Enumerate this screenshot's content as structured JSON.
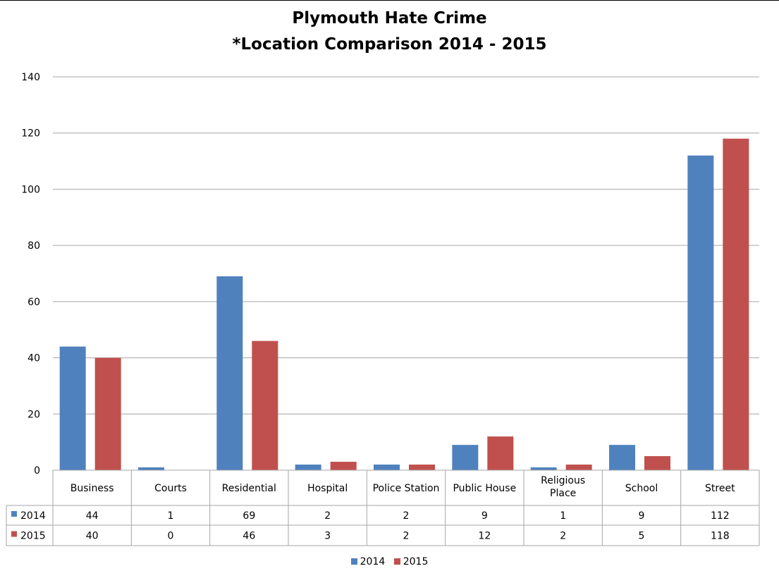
{
  "chart_data": {
    "type": "bar",
    "title": [
      "Plymouth Hate Crime",
      "*Location Comparison 2014 - 2015"
    ],
    "xlabel": "",
    "ylabel": "",
    "ylim": [
      0,
      140
    ],
    "yticks": [
      0,
      20,
      40,
      60,
      80,
      100,
      120,
      140
    ],
    "grid": true,
    "legend_position": "bottom",
    "data_table": true,
    "categories": [
      "Business",
      "Courts",
      "Residential",
      "Hospital",
      "Police Station",
      "Public House",
      "Religious Place",
      "School",
      "Street"
    ],
    "series": [
      {
        "name": "2014",
        "color": "#4f81bd",
        "values": [
          44,
          1,
          69,
          2,
          2,
          9,
          1,
          9,
          112
        ]
      },
      {
        "name": "2015",
        "color": "#c0504d",
        "values": [
          40,
          0,
          46,
          3,
          2,
          12,
          2,
          5,
          118
        ]
      }
    ]
  }
}
